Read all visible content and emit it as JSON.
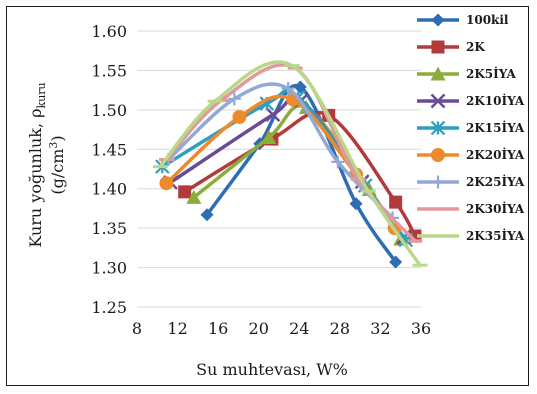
{
  "chart_data": {
    "type": "line",
    "xlabel": "Su muhtevası, W%",
    "ylabel_line1": "Kuru yoğunluk, ρ",
    "ylabel_sub": "kuru",
    "ylabel_line2": "(g/cm",
    "ylabel_sup": "3",
    "ylabel_close": ")",
    "xlim": [
      8,
      36
    ],
    "ylim": [
      1.25,
      1.6
    ],
    "x_ticks": [
      "8",
      "12",
      "16",
      "20",
      "24",
      "28",
      "32",
      "36"
    ],
    "y_ticks": [
      "1.25",
      "1.30",
      "1.35",
      "1.40",
      "1.45",
      "1.50",
      "1.55",
      "1.60"
    ],
    "legend_position": "right",
    "series": [
      {
        "name": "100kil",
        "color": "#2e6db4",
        "marker": "diamond",
        "points": [
          [
            14.9,
            1.367
          ],
          [
            20.1,
            1.457
          ],
          [
            24.1,
            1.529
          ],
          [
            29.6,
            1.381
          ],
          [
            33.5,
            1.307
          ]
        ]
      },
      {
        "name": "2K",
        "color": "#b33a3a",
        "marker": "square",
        "points": [
          [
            12.7,
            1.396
          ],
          [
            21.3,
            1.463
          ],
          [
            26.9,
            1.493
          ],
          [
            33.5,
            1.383
          ],
          [
            35.4,
            1.34
          ]
        ]
      },
      {
        "name": "2K5İYA",
        "color": "#8aae3a",
        "marker": "triangle",
        "points": [
          [
            13.6,
            1.389
          ],
          [
            21.0,
            1.465
          ],
          [
            24.7,
            1.503
          ],
          [
            30.9,
            1.399
          ],
          [
            34.0,
            1.336
          ]
        ]
      },
      {
        "name": "2K10İYA",
        "color": "#6b4a96",
        "marker": "x",
        "points": [
          [
            11.3,
            1.408
          ],
          [
            21.4,
            1.494
          ],
          [
            24.2,
            1.512
          ],
          [
            30.2,
            1.409
          ],
          [
            34.3,
            1.338
          ]
        ]
      },
      {
        "name": "2K15İYA",
        "color": "#2f9fbf",
        "marker": "asterisk",
        "points": [
          [
            10.5,
            1.428
          ],
          [
            20.8,
            1.508
          ],
          [
            23.9,
            1.516
          ],
          [
            30.5,
            1.404
          ],
          [
            34.5,
            1.335
          ]
        ]
      },
      {
        "name": "2K20İYA",
        "color": "#ef8a2c",
        "marker": "circle",
        "points": [
          [
            10.9,
            1.407
          ],
          [
            18.1,
            1.491
          ],
          [
            23.4,
            1.513
          ],
          [
            29.6,
            1.418
          ],
          [
            33.4,
            1.35
          ]
        ]
      },
      {
        "name": "2K25İYA",
        "color": "#92a9d6",
        "marker": "plus",
        "points": [
          [
            11.1,
            1.437
          ],
          [
            17.6,
            1.514
          ],
          [
            22.9,
            1.527
          ],
          [
            27.8,
            1.434
          ],
          [
            33.2,
            1.363
          ]
        ]
      },
      {
        "name": "2K30İYA",
        "color": "#e0999c",
        "marker": "dash",
        "points": [
          [
            10.9,
            1.437
          ],
          [
            16.3,
            1.512
          ],
          [
            23.6,
            1.553
          ],
          [
            29.8,
            1.412
          ],
          [
            35.4,
            1.334
          ]
        ]
      },
      {
        "name": "2K35İYA",
        "color": "#b9d88b",
        "marker": "dash",
        "points": [
          [
            10.3,
            1.428
          ],
          [
            15.7,
            1.511
          ],
          [
            23.3,
            1.556
          ],
          [
            30.8,
            1.397
          ],
          [
            35.9,
            1.303
          ]
        ]
      }
    ]
  }
}
